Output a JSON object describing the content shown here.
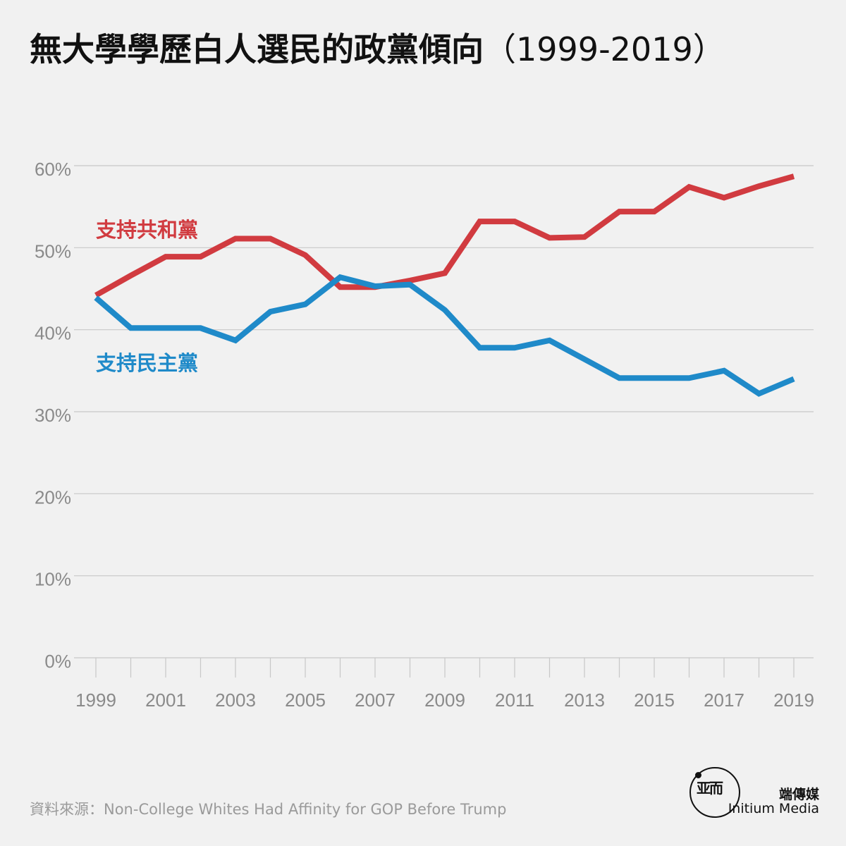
{
  "title": "無大學學歷白人選民的政黨傾向",
  "title_years": "（1999-2019）",
  "source": "資料來源：Non-College Whites Had Affinity for GOP Before Trump",
  "brand": {
    "name_cn": "端傳媒",
    "name_en": "Initium Media",
    "logo_icon": "initium-logo-icon"
  },
  "colors": {
    "republican": "#d13b40",
    "democrat": "#1f8ac9",
    "grid": "#c8c8c8",
    "tick_text": "#8a8a8a"
  },
  "chart_data": {
    "type": "line",
    "title": "無大學學歷白人選民的政黨傾向（1999-2019）",
    "xlabel": "",
    "ylabel": "",
    "xlim": [
      1999,
      2019
    ],
    "ylim": [
      0,
      60
    ],
    "x_ticks": [
      "1999",
      "2001",
      "2003",
      "2005",
      "2007",
      "2009",
      "2011",
      "2013",
      "2015",
      "2017",
      "2019"
    ],
    "y_ticks": [
      "0%",
      "10%",
      "20%",
      "30%",
      "40%",
      "50%",
      "60%"
    ],
    "grid": true,
    "x": [
      1999,
      2000,
      2001,
      2002,
      2003,
      2004,
      2005,
      2006,
      2007,
      2008,
      2009,
      2010,
      2011,
      2012,
      2013,
      2014,
      2015,
      2016,
      2017,
      2018,
      2019
    ],
    "series": [
      {
        "name": "支持共和黨",
        "color": "#d13b40",
        "values": [
          44.2,
          46.6,
          48.9,
          48.9,
          51.1,
          51.1,
          49.1,
          45.2,
          45.2,
          46.0,
          46.9,
          53.2,
          53.2,
          51.2,
          51.3,
          54.4,
          54.4,
          57.4,
          56.1,
          57.5,
          58.7
        ]
      },
      {
        "name": "支持民主黨",
        "color": "#1f8ac9",
        "values": [
          43.9,
          40.2,
          40.2,
          40.2,
          38.7,
          42.2,
          43.1,
          46.4,
          45.3,
          45.5,
          42.4,
          37.8,
          37.8,
          38.7,
          36.4,
          34.1,
          34.1,
          34.1,
          35.0,
          32.2,
          34.0
        ]
      }
    ]
  }
}
